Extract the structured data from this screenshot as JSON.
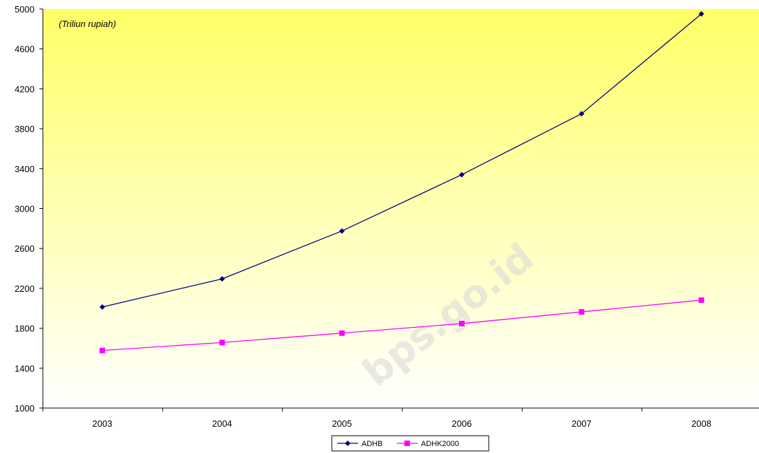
{
  "unit_note": "(Triliun rupiah)",
  "watermark": "bps.go.id",
  "colors": {
    "plot_top": "#ffff66",
    "plot_bottom": "#ffffff",
    "adhb": "#000080",
    "adhk": "#ff00ff"
  },
  "chart_data": {
    "type": "line",
    "categories": [
      "2003",
      "2004",
      "2005",
      "2006",
      "2007",
      "2008"
    ],
    "series": [
      {
        "name": "ADHB",
        "values": [
          2013,
          2295,
          2775,
          3339,
          3950,
          4951
        ],
        "marker": "diamond"
      },
      {
        "name": "ADHK2000",
        "values": [
          1577,
          1657,
          1751,
          1847,
          1964,
          2082
        ],
        "marker": "square"
      }
    ],
    "title": "",
    "xlabel": "",
    "ylabel": "",
    "ylim": [
      1000,
      5000
    ],
    "yticks": [
      "1000",
      "1400",
      "1800",
      "2200",
      "2600",
      "3000",
      "3400",
      "3800",
      "4200",
      "4600",
      "5000"
    ],
    "grid": false,
    "legend": "bottom"
  }
}
